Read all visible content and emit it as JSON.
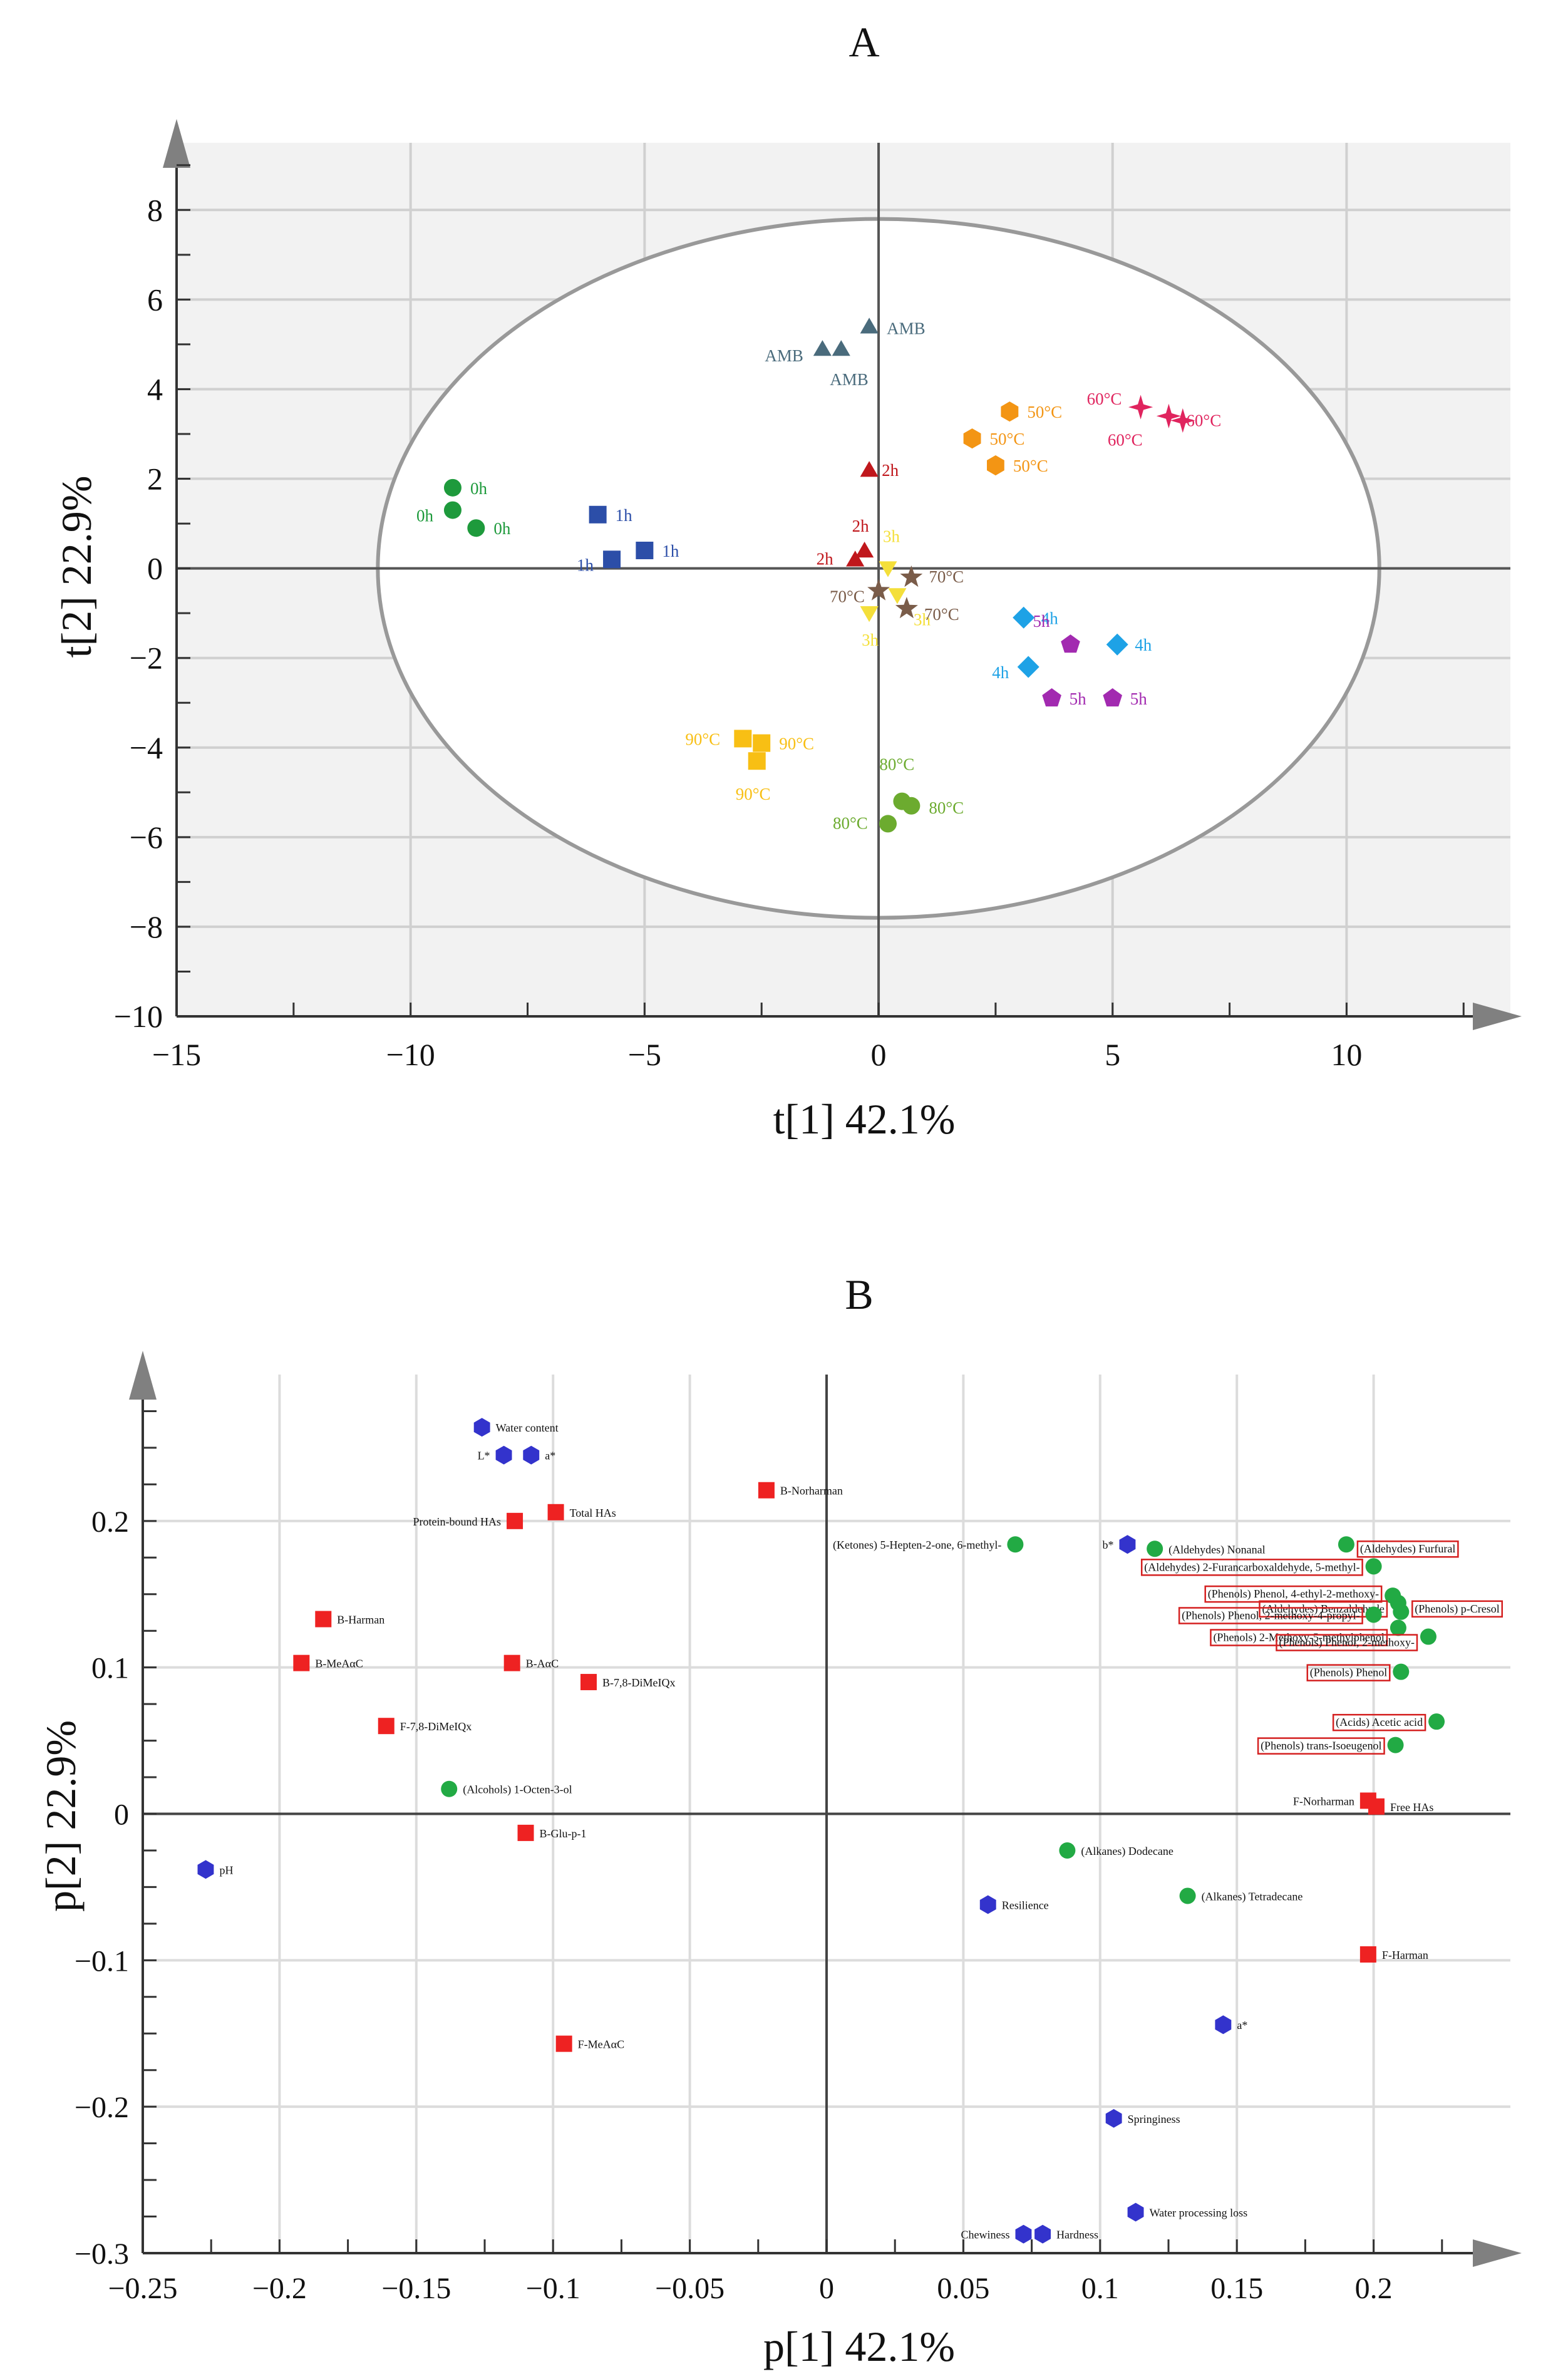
{
  "chart_data": [
    {
      "panel": "A",
      "type": "scatter",
      "xlabel": "t[1] 42.1%",
      "ylabel": "t[2] 22.9%",
      "xlim": [
        -15,
        13.5
      ],
      "ylim": [
        -10,
        9.5
      ],
      "xticks": [
        -15,
        -10,
        -5,
        0,
        5,
        10
      ],
      "yticks": [
        8,
        6,
        4,
        2,
        0,
        -2,
        -4,
        -6,
        -8,
        -10
      ],
      "grid": true,
      "ellipse": {
        "cx": 0.0,
        "cy": 0.0,
        "rx": 10.7,
        "ry": 7.8
      },
      "series": [
        {
          "group": "AMB",
          "color": "#4a6b7c",
          "marker": "triangle",
          "points": [
            {
              "x": -0.2,
              "y": 5.4,
              "label": "AMB"
            },
            {
              "x": -1.2,
              "y": 4.9,
              "label": "AMB"
            },
            {
              "x": -0.8,
              "y": 4.9,
              "label": "AMB"
            }
          ]
        },
        {
          "group": "0h",
          "color": "#1e9a3c",
          "marker": "circle",
          "points": [
            {
              "x": -9.1,
              "y": 1.8,
              "label": "0h"
            },
            {
              "x": -9.1,
              "y": 1.3,
              "label": "0h"
            },
            {
              "x": -8.6,
              "y": 0.9,
              "label": "0h"
            }
          ]
        },
        {
          "group": "1h",
          "color": "#2c4ea8",
          "marker": "square",
          "points": [
            {
              "x": -6.0,
              "y": 1.2,
              "label": "1h"
            },
            {
              "x": -5.0,
              "y": 0.4,
              "label": "1h"
            },
            {
              "x": -5.7,
              "y": 0.2,
              "label": "1h"
            }
          ]
        },
        {
          "group": "2h",
          "color": "#c0171c",
          "marker": "triangle",
          "points": [
            {
              "x": -0.2,
              "y": 2.2,
              "label": "2h"
            },
            {
              "x": -0.3,
              "y": 0.4,
              "label": "2h"
            },
            {
              "x": -0.5,
              "y": 0.2,
              "label": "2h"
            }
          ]
        },
        {
          "group": "3h",
          "color": "#f4df3a",
          "marker": "triangle-down",
          "points": [
            {
              "x": 0.2,
              "y": 0.0,
              "label": "3h"
            },
            {
              "x": 0.4,
              "y": -0.6,
              "label": "3h"
            },
            {
              "x": -0.2,
              "y": -1.0,
              "label": "3h"
            }
          ]
        },
        {
          "group": "4h",
          "color": "#1ea2e6",
          "marker": "diamond",
          "points": [
            {
              "x": 3.1,
              "y": -1.1,
              "label": "4h"
            },
            {
              "x": 5.1,
              "y": -1.7,
              "label": "4h"
            },
            {
              "x": 3.2,
              "y": -2.2,
              "label": "4h"
            }
          ]
        },
        {
          "group": "5h",
          "color": "#a22ab0",
          "marker": "pentagon",
          "points": [
            {
              "x": 4.1,
              "y": -1.7,
              "label": "5h"
            },
            {
              "x": 3.7,
              "y": -2.9,
              "label": "5h"
            },
            {
              "x": 5.0,
              "y": -2.9,
              "label": "5h"
            }
          ]
        },
        {
          "group": "50°C",
          "color": "#f39514",
          "marker": "hexagon",
          "points": [
            {
              "x": 2.8,
              "y": 3.5,
              "label": "50°C"
            },
            {
              "x": 2.0,
              "y": 2.9,
              "label": "50°C"
            },
            {
              "x": 2.5,
              "y": 2.3,
              "label": "50°C"
            }
          ]
        },
        {
          "group": "60°C",
          "color": "#e0245e",
          "marker": "star4",
          "points": [
            {
              "x": 5.6,
              "y": 3.6,
              "label": "60°C"
            },
            {
              "x": 6.2,
              "y": 3.4,
              "label": "60°C"
            },
            {
              "x": 6.5,
              "y": 3.3,
              "label": "60°C"
            }
          ]
        },
        {
          "group": "70°C",
          "color": "#7a5c49",
          "marker": "star5",
          "points": [
            {
              "x": 0.7,
              "y": -0.2,
              "label": "70°C"
            },
            {
              "x": 0.0,
              "y": -0.5,
              "label": "70°C"
            },
            {
              "x": 0.6,
              "y": -0.9,
              "label": "70°C"
            }
          ]
        },
        {
          "group": "80°C",
          "color": "#6cab2f",
          "marker": "circle",
          "points": [
            {
              "x": 0.5,
              "y": -5.2,
              "label": "80°C"
            },
            {
              "x": 0.7,
              "y": -5.3,
              "label": "80°C"
            },
            {
              "x": 0.2,
              "y": -5.7,
              "label": "80°C"
            }
          ]
        },
        {
          "group": "90°C",
          "color": "#f8bf14",
          "marker": "square",
          "points": [
            {
              "x": -2.9,
              "y": -3.8,
              "label": "90°C"
            },
            {
              "x": -2.5,
              "y": -3.9,
              "label": "90°C"
            },
            {
              "x": -2.6,
              "y": -4.3,
              "label": "90°C"
            }
          ]
        }
      ]
    },
    {
      "panel": "B",
      "type": "scatter",
      "xlabel": "p[1] 42.1%",
      "ylabel": "p[2] 22.9%",
      "xlim": [
        -0.25,
        0.25
      ],
      "ylim": [
        -0.3,
        0.3
      ],
      "xticks": [
        -0.25,
        -0.2,
        -0.15,
        -0.1,
        -0.05,
        0,
        0.05,
        0.1,
        0.15,
        0.2
      ],
      "yticks": [
        0.2,
        0.1,
        0,
        -0.1,
        -0.2,
        -0.3
      ],
      "grid": true,
      "series": [
        {
          "group": "quality",
          "color": "#3333cc",
          "marker": "hexagon",
          "points": [
            {
              "x": -0.126,
              "y": 0.264,
              "label": "Water content"
            },
            {
              "x": -0.118,
              "y": 0.245,
              "label": "L*"
            },
            {
              "x": -0.108,
              "y": 0.245,
              "label": "a*"
            },
            {
              "x": 0.11,
              "y": 0.184,
              "label": "b*"
            },
            {
              "x": -0.227,
              "y": -0.038,
              "label": "pH"
            },
            {
              "x": 0.059,
              "y": -0.062,
              "label": "Resilience"
            },
            {
              "x": 0.145,
              "y": -0.144,
              "label": "a*"
            },
            {
              "x": 0.105,
              "y": -0.208,
              "label": "Springiness"
            },
            {
              "x": 0.113,
              "y": -0.272,
              "label": "Water processing loss"
            },
            {
              "x": 0.072,
              "y": -0.287,
              "label": "Chewiness"
            },
            {
              "x": 0.079,
              "y": -0.287,
              "label": "Hardness"
            }
          ]
        },
        {
          "group": "HAs",
          "color": "#ee2222",
          "marker": "square",
          "points": [
            {
              "x": -0.022,
              "y": 0.221,
              "label": "B-Norharman"
            },
            {
              "x": -0.099,
              "y": 0.206,
              "label": "Total HAs"
            },
            {
              "x": -0.114,
              "y": 0.2,
              "label": "Protein-bound HAs"
            },
            {
              "x": -0.184,
              "y": 0.133,
              "label": "B-Harman"
            },
            {
              "x": -0.192,
              "y": 0.103,
              "label": "B-MeAαC"
            },
            {
              "x": -0.115,
              "y": 0.103,
              "label": "B-AαC"
            },
            {
              "x": -0.087,
              "y": 0.09,
              "label": "B-7,8-DiMeIQx"
            },
            {
              "x": -0.161,
              "y": 0.06,
              "label": "F-7,8-DiMeIQx"
            },
            {
              "x": -0.11,
              "y": -0.013,
              "label": "B-Glu-p-1"
            },
            {
              "x": -0.096,
              "y": -0.157,
              "label": "F-MeAαC"
            },
            {
              "x": 0.198,
              "y": 0.009,
              "label": "F-Norharman"
            },
            {
              "x": 0.201,
              "y": 0.005,
              "label": "Free HAs"
            },
            {
              "x": 0.198,
              "y": -0.096,
              "label": "F-Harman"
            }
          ]
        },
        {
          "group": "volatiles",
          "color": "#22aa44",
          "marker": "circle",
          "points": [
            {
              "x": 0.069,
              "y": 0.184,
              "label": "(Ketones) 5-Hepten-2-one, 6-methyl-"
            },
            {
              "x": 0.12,
              "y": 0.181,
              "label": "(Aldehydes) Nonanal"
            },
            {
              "x": 0.19,
              "y": 0.184,
              "label": "(Aldehydes) Furfural"
            },
            {
              "x": 0.2,
              "y": 0.169,
              "label": "(Aldehydes) 2-Furancarboxaldehyde, 5-methyl-"
            },
            {
              "x": 0.207,
              "y": 0.149,
              "label": "(Phenols) Phenol, 4-ethyl-2-methoxy-"
            },
            {
              "x": 0.209,
              "y": 0.144,
              "label": "(Aldehydes) Benzaldehyde"
            },
            {
              "x": 0.2,
              "y": 0.136,
              "label": "(Phenols) Phenol, 2-methoxy-4-propyl-"
            },
            {
              "x": 0.21,
              "y": 0.138,
              "label": "(Phenols) p-Cresol"
            },
            {
              "x": 0.209,
              "y": 0.127,
              "label": "(Phenols) 2-Methoxy-5-methylphenol"
            },
            {
              "x": 0.22,
              "y": 0.121,
              "label": "(Phenols) Phenol, 2-methoxy-"
            },
            {
              "x": 0.21,
              "y": 0.097,
              "label": "(Phenols) Phenol"
            },
            {
              "x": 0.223,
              "y": 0.063,
              "label": "(Acids) Acetic acid"
            },
            {
              "x": 0.208,
              "y": 0.047,
              "label": "(Phenols) trans-Isoeugenol"
            },
            {
              "x": -0.138,
              "y": 0.017,
              "label": "(Alcohols) 1-Octen-3-ol"
            },
            {
              "x": 0.088,
              "y": -0.025,
              "label": "(Alkanes) Dodecane"
            },
            {
              "x": 0.132,
              "y": -0.056,
              "label": "(Alkanes) Tetradecane"
            }
          ]
        }
      ]
    }
  ],
  "panel_titles": [
    "A",
    "B"
  ]
}
